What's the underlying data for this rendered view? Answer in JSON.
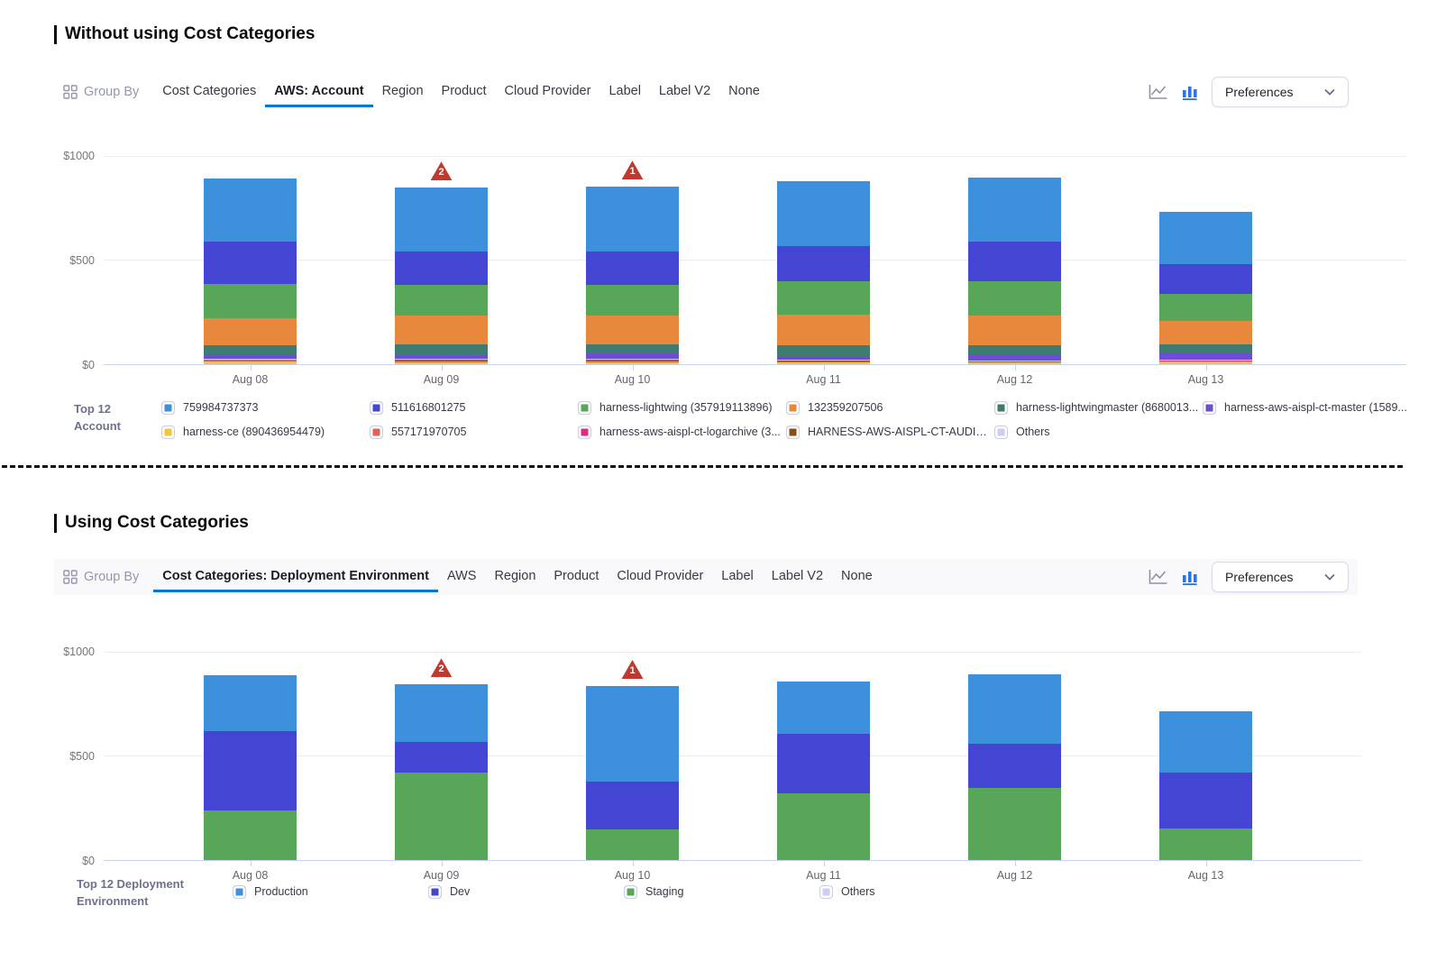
{
  "colors": {
    "accent": "#0278D5",
    "anomaly": "#C0392E"
  },
  "sections": [
    {
      "title": "Without using Cost Categories",
      "toolbar": {
        "group_by_label": "Group By",
        "tabs": [
          {
            "label": "Cost Categories",
            "active": false
          },
          {
            "label": "AWS: Account",
            "active": true
          },
          {
            "label": "Region",
            "active": false
          },
          {
            "label": "Product",
            "active": false
          },
          {
            "label": "Cloud Provider",
            "active": false
          },
          {
            "label": "Label",
            "active": false
          },
          {
            "label": "Label V2",
            "active": false
          },
          {
            "label": "None",
            "active": false
          }
        ],
        "chart_icons": [
          "line-chart",
          "bar-chart"
        ],
        "active_chart_icon": "bar-chart",
        "preferences_label": "Preferences"
      },
      "legend_title_lines": [
        "Top 12",
        "Account"
      ]
    },
    {
      "title": "Using Cost Categories",
      "toolbar": {
        "group_by_label": "Group By",
        "tabs": [
          {
            "label": "Cost Categories: Deployment Environment",
            "active": true
          },
          {
            "label": "AWS",
            "active": false
          },
          {
            "label": "Region",
            "active": false
          },
          {
            "label": "Product",
            "active": false
          },
          {
            "label": "Cloud Provider",
            "active": false
          },
          {
            "label": "Label",
            "active": false
          },
          {
            "label": "Label V2",
            "active": false
          },
          {
            "label": "None",
            "active": false
          }
        ],
        "chart_icons": [
          "line-chart",
          "bar-chart"
        ],
        "active_chart_icon": "bar-chart",
        "preferences_label": "Preferences"
      },
      "legend_title_lines": [
        "Top 12 Deployment",
        "Environment"
      ]
    }
  ],
  "chart_data": [
    {
      "type": "bar",
      "stacked": true,
      "title": "Cloud cost grouped by AWS: Account",
      "categories": [
        "Aug 08",
        "Aug 09",
        "Aug 10",
        "Aug 11",
        "Aug 12",
        "Aug 13"
      ],
      "ylim": [
        0,
        1000
      ],
      "yticks": [
        {
          "label": "$0",
          "value": 0
        },
        {
          "label": "$500",
          "value": 500
        },
        {
          "label": "$1000",
          "value": 1000
        }
      ],
      "grid": true,
      "legend_position": "bottom",
      "series": [
        {
          "name": "759984737373",
          "color": "#3D91DC",
          "values": [
            302,
            305,
            307,
            310,
            306,
            249
          ]
        },
        {
          "name": "511616801275",
          "color": "#4446D3",
          "values": [
            204,
            159,
            163,
            166,
            189,
            141
          ]
        },
        {
          "name": "harness-lightwing (357919113896)",
          "color": "#57A65A",
          "values": [
            162,
            147,
            144,
            160,
            165,
            128
          ]
        },
        {
          "name": "132359207506",
          "color": "#E8883D",
          "values": [
            130,
            138,
            140,
            146,
            141,
            112
          ]
        },
        {
          "name": "harness-lightwingmaster (8680013...",
          "color": "#3E7C72",
          "values": [
            43,
            53,
            44,
            51,
            44,
            40
          ]
        },
        {
          "name": "harness-aws-aispl-ct-master (1589...",
          "color": "#6C4ED4",
          "values": [
            19,
            17,
            25,
            19,
            29,
            34
          ]
        },
        {
          "name": "harness-ce (890436954479)",
          "color": "#F3C43C",
          "values": [
            12,
            10,
            10,
            8,
            7,
            15
          ]
        },
        {
          "name": "557171970705",
          "color": "#E06155",
          "values": [
            10,
            9,
            9,
            7,
            5,
            2
          ]
        },
        {
          "name": "harness-aws-aispl-ct-logarchive (3...",
          "color": "#DE2E7F",
          "values": [
            2,
            2,
            2,
            2,
            2,
            2
          ]
        },
        {
          "name": "HARNESS-AWS-AISPL-CT-AUDIT (...",
          "color": "#8C4B16",
          "values": [
            2,
            2,
            2,
            2,
            2,
            2
          ]
        },
        {
          "name": "Others",
          "color": "#CDCCF4",
          "values": [
            2,
            2,
            2,
            2,
            2,
            2
          ]
        }
      ],
      "stack_bottom_to_top": [
        "harness-ce (890436954479)",
        "557171970705",
        "harness-aws-aispl-ct-logarchive (3...",
        "HARNESS-AWS-AISPL-CT-AUDIT (...",
        "Others",
        "harness-aws-aispl-ct-master (1589...",
        "harness-lightwingmaster (8680013...",
        "132359207506",
        "harness-lightwing (357919113896)",
        "511616801275",
        "759984737373"
      ],
      "anomalies": [
        {
          "category": "Aug 09",
          "count": 2
        },
        {
          "category": "Aug 10",
          "count": 1
        }
      ]
    },
    {
      "type": "bar",
      "stacked": true,
      "title": "Cloud cost grouped by Cost Categories: Deployment Environment",
      "categories": [
        "Aug 08",
        "Aug 09",
        "Aug 10",
        "Aug 11",
        "Aug 12",
        "Aug 13"
      ],
      "ylim": [
        0,
        1000
      ],
      "yticks": [
        {
          "label": "$0",
          "value": 0
        },
        {
          "label": "$500",
          "value": 500
        },
        {
          "label": "$1000",
          "value": 1000
        }
      ],
      "grid": true,
      "legend_position": "bottom",
      "series": [
        {
          "name": "Production",
          "color": "#3D91DC",
          "values": [
            266,
            273,
            456,
            252,
            331,
            290
          ]
        },
        {
          "name": "Dev",
          "color": "#4446D3",
          "values": [
            377,
            147,
            230,
            281,
            208,
            271
          ]
        },
        {
          "name": "Staging",
          "color": "#57A65A",
          "values": [
            237,
            417,
            144,
            319,
            345,
            147
          ]
        },
        {
          "name": "Others",
          "color": "#CDCCF4",
          "values": [
            2,
            2,
            2,
            2,
            2,
            2
          ]
        }
      ],
      "stack_bottom_to_top": [
        "Others",
        "Staging",
        "Dev",
        "Production"
      ],
      "anomalies": [
        {
          "category": "Aug 09",
          "count": 2
        },
        {
          "category": "Aug 10",
          "count": 1
        }
      ]
    }
  ]
}
